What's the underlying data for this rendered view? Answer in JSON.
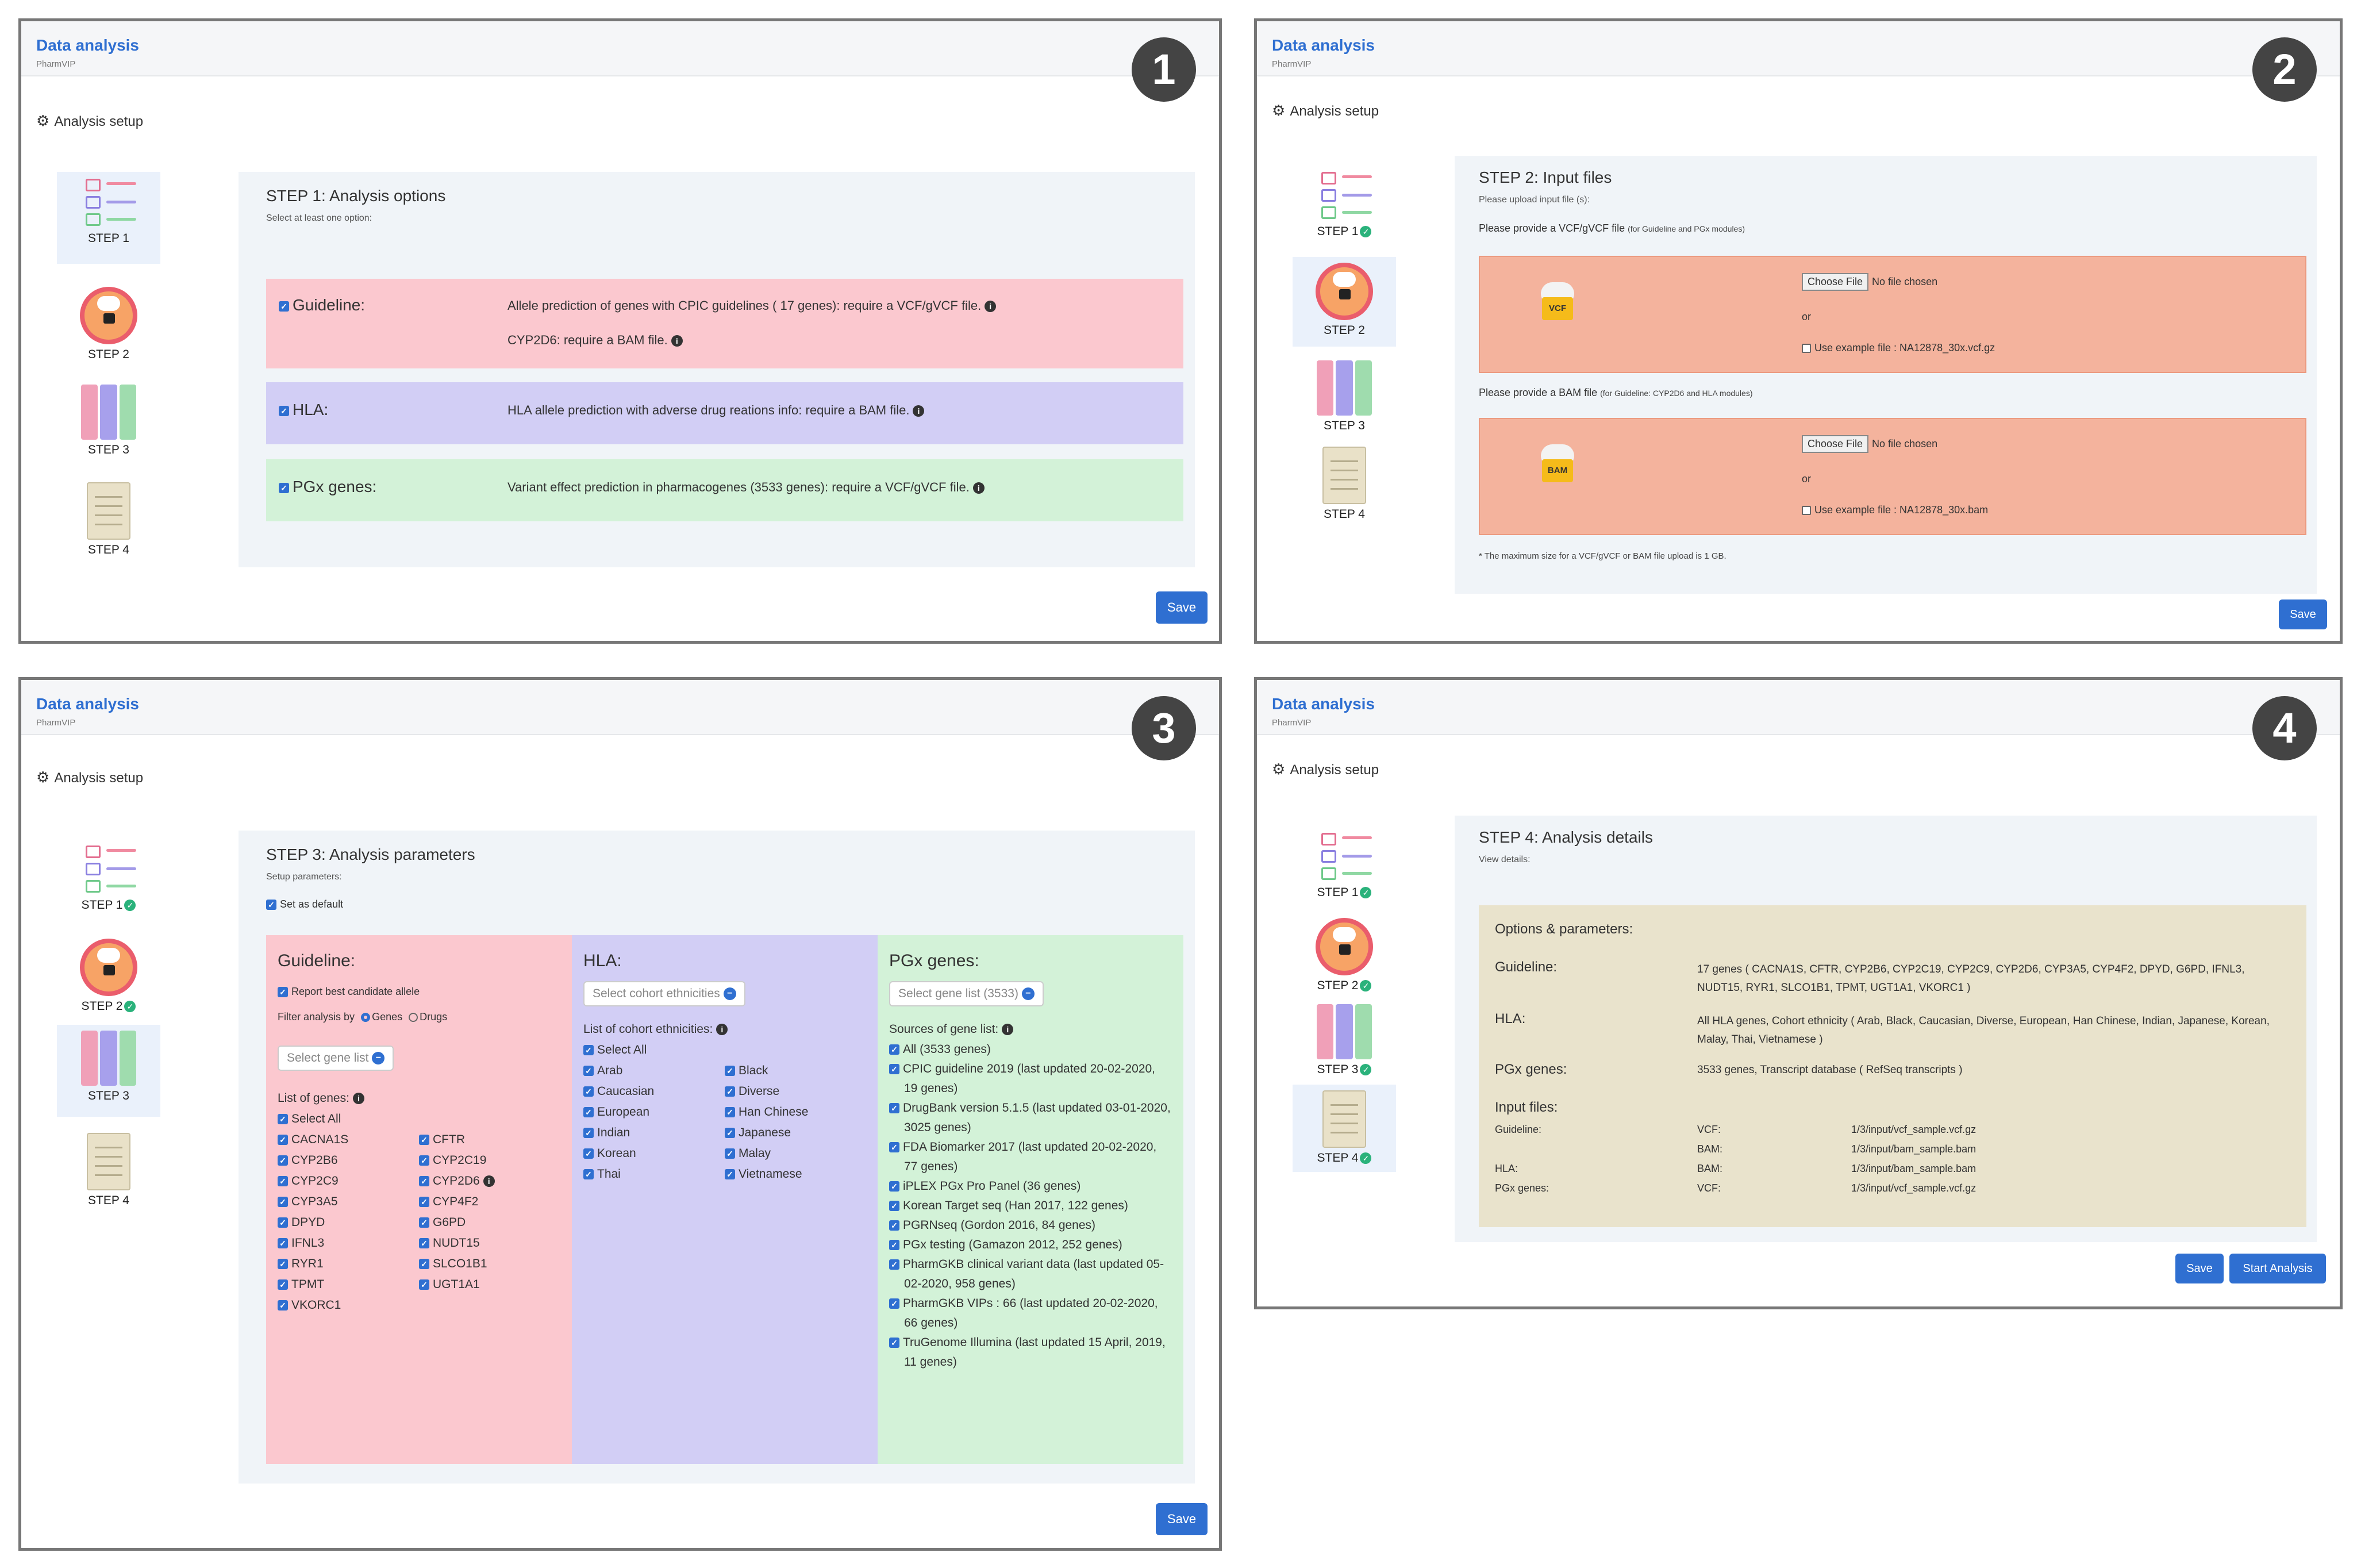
{
  "common": {
    "title": "Data analysis",
    "subtitle": "PharmVIP",
    "setup": "Analysis setup",
    "save": "Save"
  },
  "steps": [
    "STEP 1",
    "STEP 2",
    "STEP 3",
    "STEP 4"
  ],
  "panel1": {
    "number": "1",
    "heading": "STEP 1: Analysis options",
    "hint": "Select at least one option:",
    "options": [
      {
        "label": "Guideline:",
        "text": "Allele prediction of genes with CPIC guidelines ( 17 genes): require a VCF/gVCF file.",
        "text2": "CYP2D6: require a BAM file.",
        "color": "#fbc8cf"
      },
      {
        "label": "HLA:",
        "text": "HLA allele prediction with adverse drug reations info: require a BAM file.",
        "color": "#d2cef5"
      },
      {
        "label": "PGx genes:",
        "text": "Variant effect prediction in pharmacogenes (3533 genes): require a VCF/gVCF file.",
        "color": "#d3f2d8"
      }
    ]
  },
  "panel2": {
    "number": "2",
    "heading": "STEP 2: Input files",
    "hint": "Please upload input file (s):",
    "vcf_prompt": "Please provide a VCF/gVCF file",
    "vcf_prompt_small": "(for Guideline and PGx modules)",
    "bam_prompt": "Please provide a BAM file",
    "bam_prompt_small": "(for Guideline: CYP2D6 and HLA modules)",
    "choose_file": "Choose File",
    "no_file": "No file chosen",
    "or": "or",
    "vcf_icon": "VCF",
    "bam_icon": "BAM",
    "vcf_example": "Use example file : NA12878_30x.vcf.gz",
    "bam_example": "Use example file : NA12878_30x.bam",
    "note": "* The maximum size for a VCF/gVCF or BAM file upload is 1 GB."
  },
  "panel3": {
    "number": "3",
    "heading": "STEP 3: Analysis parameters",
    "hint": "Setup parameters:",
    "set_default": "Set as default",
    "guideline": {
      "title": "Guideline:",
      "report": "Report best candidate allele",
      "filter": "Filter analysis by",
      "genes": "Genes",
      "drugs": "Drugs",
      "select": "Select gene list",
      "list_title": "List of genes:",
      "select_all": "Select All",
      "genes_left": [
        "CACNA1S",
        "CYP2B6",
        "CYP2C9",
        "CYP3A5",
        "DPYD",
        "IFNL3",
        "RYR1",
        "TPMT",
        "VKORC1"
      ],
      "genes_right": [
        "CFTR",
        "CYP2C19",
        "CYP2D6",
        "CYP4F2",
        "G6PD",
        "NUDT15",
        "SLCO1B1",
        "UGT1A1"
      ]
    },
    "hla": {
      "title": "HLA:",
      "select": "Select cohort ethnicities",
      "list_title": "List of cohort ethnicities:",
      "select_all": "Select All",
      "left": [
        "Arab",
        "Caucasian",
        "European",
        "Indian",
        "Korean",
        "Thai"
      ],
      "right": [
        "Black",
        "Diverse",
        "Han Chinese",
        "Japanese",
        "Malay",
        "Vietnamese"
      ]
    },
    "pgx": {
      "title": "PGx genes:",
      "select": "Select gene list (3533)",
      "list_title": "Sources of gene list:",
      "sources": [
        "All (3533 genes)",
        "CPIC guideline 2019 (last updated 20-02-2020, 19 genes)",
        "DrugBank version 5.1.5 (last updated 03-01-2020, 3025 genes)",
        "FDA Biomarker 2017 (last updated 20-02-2020, 77 genes)",
        "iPLEX PGx Pro Panel (36 genes)",
        "Korean Target seq (Han 2017, 122 genes)",
        "PGRNseq (Gordon 2016, 84 genes)",
        "PGx testing (Gamazon 2012, 252 genes)",
        "PharmGKB clinical variant data (last updated 05-02-2020, 958 genes)",
        "PharmGKB VIPs : 66 (last updated 20-02-2020, 66 genes)",
        "TruGenome Illumina (last updated 15 April, 2019, 11 genes)"
      ]
    },
    "colors": {
      "guideline": "#fbc8cf",
      "hla": "#d2cef5",
      "pgx": "#d3f2d8"
    }
  },
  "panel4": {
    "number": "4",
    "heading": "STEP 4: Analysis details",
    "hint": "View details:",
    "box_title": "Options & parameters:",
    "guideline_label": "Guideline:",
    "guideline_text": "17 genes ( CACNA1S, CFTR, CYP2B6, CYP2C19, CYP2C9, CYP2D6, CYP3A5, CYP4F2, DPYD, G6PD, IFNL3, NUDT15, RYR1, SLCO1B1, TPMT, UGT1A1, VKORC1 )",
    "hla_label": "HLA:",
    "hla_text": "All HLA genes, Cohort ethnicity ( Arab, Black, Caucasian, Diverse, European, Han Chinese, Indian, Japanese, Korean, Malay, Thai, Vietnamese )",
    "pgx_label": "PGx genes:",
    "pgx_text": "3533 genes, Transcript database ( RefSeq transcripts )",
    "inputs_label": "Input files:",
    "inputs": [
      {
        "module": "Guideline:",
        "type": "VCF:",
        "path": "1/3/input/vcf_sample.vcf.gz"
      },
      {
        "module": "",
        "type": "BAM:",
        "path": "1/3/input/bam_sample.bam"
      },
      {
        "module": "HLA:",
        "type": "BAM:",
        "path": "1/3/input/bam_sample.bam"
      },
      {
        "module": "PGx genes:",
        "type": "VCF:",
        "path": "1/3/input/vcf_sample.vcf.gz"
      }
    ],
    "box_color": "#e9e3cc",
    "start": "Start Analysis"
  }
}
